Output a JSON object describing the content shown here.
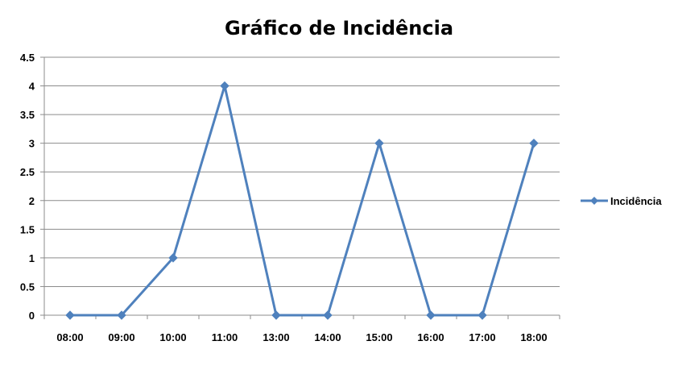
{
  "chart_data": {
    "type": "line",
    "title": "Gráfico de Incidência",
    "categories": [
      "08:00",
      "09:00",
      "10:00",
      "11:00",
      "13:00",
      "14:00",
      "15:00",
      "16:00",
      "17:00",
      "18:00"
    ],
    "series": [
      {
        "name": "Incidência",
        "values": [
          0,
          0,
          1,
          4,
          0,
          0,
          3,
          0,
          0,
          3
        ],
        "color": "#4f81bd"
      }
    ],
    "ylim": [
      0,
      4.5
    ],
    "yticks": [
      "0",
      "0.5",
      "1",
      "1.5",
      "2",
      "2.5",
      "3",
      "3.5",
      "4",
      "4.5"
    ],
    "xlabel": "",
    "ylabel": "",
    "grid": true,
    "legend_position": "right",
    "marker": "diamond"
  }
}
